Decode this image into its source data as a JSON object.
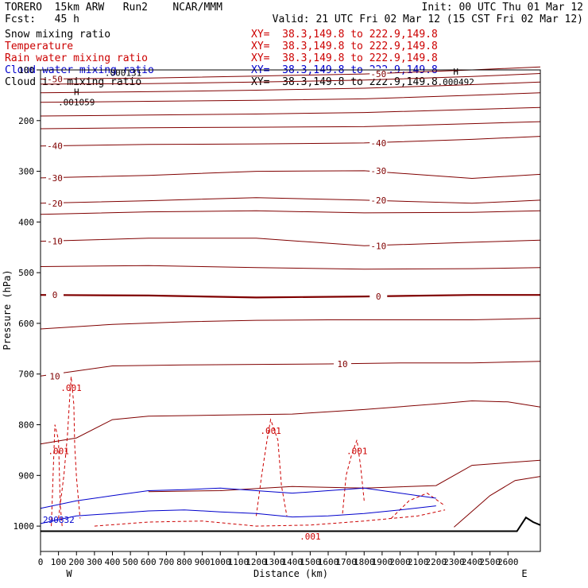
{
  "header": {
    "model": "TORERO  15km ARW   Run2    NCAR/MMM",
    "init": "Init: 00 UTC Thu 01 Mar 12",
    "fcst": "Fcst:   45 h",
    "valid": "Valid: 21 UTC Fri 02 Mar 12 (15 CST Fri 02 Mar 12)"
  },
  "legend": [
    {
      "label": "Snow mixing ratio",
      "xy": "XY=  38.3,149.8 to 222.9,149.8",
      "color": "#000000"
    },
    {
      "label": "Temperature",
      "xy": "XY=  38.3,149.8 to 222.9,149.8",
      "color": "#cc0000"
    },
    {
      "label": "Rain water mixing ratio",
      "xy": "XY=  38.3,149.8 to 222.9,149.8",
      "color": "#cc0000"
    },
    {
      "label": "Cloud water mixing ratio",
      "xy": "XY=  38.3,149.8 to 222.9,149.8",
      "color": "#0000cc"
    },
    {
      "label": "Cloud ice mixing ratio",
      "xy": "XY=  38.3,149.8 to 222.9,149.8",
      "color": "#000000"
    }
  ],
  "chart_data": {
    "type": "line",
    "xlabel": "Distance (km)",
    "ylabel": "Pressure (hPa)",
    "xlim": [
      0,
      2780
    ],
    "ylim": [
      1050,
      100
    ],
    "x_ticks": [
      "0",
      "100",
      "200",
      "300",
      "400",
      "500",
      "600",
      "700",
      "800",
      "900",
      "1000",
      "1100",
      "1200",
      "1300",
      "1400",
      "1500",
      "1600",
      "1700",
      "1800",
      "1900",
      "2000",
      "2100",
      "2200",
      "2300",
      "2400",
      "2500",
      "2600"
    ],
    "y_ticks": [
      "100",
      "200",
      "300",
      "400",
      "500",
      "600",
      "700",
      "800",
      "900",
      "1000"
    ],
    "x_ends": {
      "left": "W",
      "right": "E"
    },
    "colors": {
      "temperature": "#800000",
      "rain": "#cc0000",
      "cloud_water": "#0000cc",
      "ice": "#000000",
      "terrain": "#000000"
    },
    "temperature_isotherms": [
      {
        "label": "-50",
        "pts": [
          [
            0,
            118
          ],
          [
            600,
            116
          ],
          [
            1200,
            112
          ],
          [
            1800,
            108
          ],
          [
            2400,
            100
          ],
          [
            2780,
            94
          ]
        ]
      },
      {
        "label": "",
        "pts": [
          [
            0,
            128
          ],
          [
            600,
            127
          ],
          [
            1200,
            124
          ],
          [
            1800,
            120
          ],
          [
            2400,
            113
          ],
          [
            2780,
            107
          ]
        ]
      },
      {
        "label": "",
        "pts": [
          [
            0,
            145
          ],
          [
            600,
            143
          ],
          [
            1200,
            140
          ],
          [
            1800,
            136
          ],
          [
            2400,
            129
          ],
          [
            2780,
            124
          ]
        ]
      },
      {
        "label": "",
        "pts": [
          [
            0,
            164
          ],
          [
            600,
            162
          ],
          [
            1200,
            160
          ],
          [
            1800,
            157
          ],
          [
            2400,
            150
          ],
          [
            2780,
            145
          ]
        ]
      },
      {
        "label": "",
        "pts": [
          [
            0,
            191
          ],
          [
            600,
            189
          ],
          [
            1200,
            187
          ],
          [
            1800,
            184
          ],
          [
            2400,
            178
          ],
          [
            2780,
            174
          ]
        ]
      },
      {
        "label": "",
        "pts": [
          [
            0,
            216
          ],
          [
            600,
            214
          ],
          [
            1200,
            213
          ],
          [
            1800,
            212
          ],
          [
            2400,
            206
          ],
          [
            2780,
            202
          ]
        ]
      },
      {
        "label": "-40",
        "pts": [
          [
            0,
            250
          ],
          [
            600,
            247
          ],
          [
            1200,
            246
          ],
          [
            1800,
            244
          ],
          [
            2400,
            237
          ],
          [
            2780,
            231
          ]
        ]
      },
      {
        "label": "-30",
        "pts": [
          [
            0,
            313
          ],
          [
            600,
            308
          ],
          [
            1200,
            300
          ],
          [
            1800,
            299
          ],
          [
            2400,
            314
          ],
          [
            2780,
            306
          ]
        ]
      },
      {
        "label": "-20",
        "pts": [
          [
            0,
            363
          ],
          [
            600,
            358
          ],
          [
            1200,
            352
          ],
          [
            1800,
            357
          ],
          [
            2400,
            363
          ],
          [
            2780,
            357
          ]
        ]
      },
      {
        "label": "",
        "pts": [
          [
            0,
            385
          ],
          [
            600,
            380
          ],
          [
            1200,
            378
          ],
          [
            1800,
            382
          ],
          [
            2400,
            381
          ],
          [
            2780,
            378
          ]
        ]
      },
      {
        "label": "-10",
        "pts": [
          [
            0,
            438
          ],
          [
            600,
            432
          ],
          [
            1200,
            432
          ],
          [
            1800,
            447
          ],
          [
            2400,
            440
          ],
          [
            2780,
            436
          ]
        ]
      },
      {
        "label": "",
        "pts": [
          [
            0,
            488
          ],
          [
            600,
            486
          ],
          [
            1200,
            490
          ],
          [
            1800,
            493
          ],
          [
            2400,
            492
          ],
          [
            2780,
            490
          ]
        ]
      },
      {
        "label": "0",
        "pts": [
          [
            0,
            544
          ],
          [
            600,
            545
          ],
          [
            1200,
            549
          ],
          [
            1800,
            547
          ],
          [
            2400,
            544
          ],
          [
            2780,
            544
          ]
        ],
        "bold": true
      },
      {
        "label": "",
        "pts": [
          [
            0,
            611
          ],
          [
            400,
            602
          ],
          [
            800,
            597
          ],
          [
            1200,
            594
          ],
          [
            1600,
            593
          ],
          [
            2000,
            593
          ],
          [
            2400,
            593
          ],
          [
            2780,
            590
          ]
        ]
      },
      {
        "label": "10",
        "pts": [
          [
            0,
            704
          ],
          [
            400,
            684
          ],
          [
            800,
            682
          ],
          [
            1200,
            681
          ],
          [
            1600,
            680
          ],
          [
            2000,
            678
          ],
          [
            2400,
            678
          ],
          [
            2780,
            675
          ]
        ]
      },
      {
        "label": "",
        "pts": [
          [
            0,
            838
          ],
          [
            200,
            826
          ],
          [
            400,
            790
          ],
          [
            600,
            783
          ],
          [
            1000,
            781
          ],
          [
            1400,
            779
          ],
          [
            1800,
            770
          ],
          [
            2200,
            759
          ],
          [
            2400,
            753
          ],
          [
            2600,
            755
          ],
          [
            2780,
            765
          ]
        ]
      },
      {
        "label": "",
        "pts": [
          [
            600,
            932
          ],
          [
            1000,
            930
          ],
          [
            1400,
            922
          ],
          [
            1800,
            925
          ],
          [
            2200,
            920
          ],
          [
            2400,
            880
          ],
          [
            2780,
            870
          ]
        ]
      },
      {
        "label": "",
        "pts": [
          [
            2300,
            1002
          ],
          [
            2500,
            940
          ],
          [
            2640,
            910
          ],
          [
            2780,
            902
          ]
        ]
      }
    ],
    "rain_contours": [
      {
        "label": ".001",
        "pts": [
          [
            100,
            985
          ],
          [
            130,
            900
          ],
          [
            150,
            820
          ],
          [
            160,
            760
          ],
          [
            170,
            705
          ],
          [
            185,
            760
          ],
          [
            190,
            840
          ],
          [
            200,
            905
          ],
          [
            220,
            985
          ]
        ]
      },
      {
        "label": ".001",
        "pts": [
          [
            60,
            1000
          ],
          [
            70,
            900
          ],
          [
            80,
            800
          ],
          [
            100,
            830
          ],
          [
            110,
            960
          ],
          [
            120,
            1000
          ]
        ]
      },
      {
        "label": ".001",
        "pts": [
          [
            1200,
            980
          ],
          [
            1230,
            900
          ],
          [
            1260,
            830
          ],
          [
            1280,
            790
          ],
          [
            1320,
            830
          ],
          [
            1340,
            920
          ],
          [
            1370,
            980
          ]
        ]
      },
      {
        "label": ".001",
        "pts": [
          [
            1680,
            975
          ],
          [
            1700,
            900
          ],
          [
            1730,
            860
          ],
          [
            1760,
            830
          ],
          [
            1780,
            880
          ],
          [
            1800,
            950
          ]
        ]
      },
      {
        "label": "",
        "pts": [
          [
            1950,
            985
          ],
          [
            2050,
            950
          ],
          [
            2150,
            935
          ],
          [
            2250,
            960
          ]
        ]
      },
      {
        "label": ".001",
        "pts": [
          [
            300,
            1000
          ],
          [
            600,
            992
          ],
          [
            900,
            990
          ],
          [
            1200,
            1000
          ],
          [
            1500,
            998
          ],
          [
            1800,
            990
          ],
          [
            2100,
            980
          ],
          [
            2250,
            968
          ]
        ]
      }
    ],
    "cloud_water_contours": [
      {
        "label": "290832",
        "pts": [
          [
            0,
            965
          ],
          [
            200,
            950
          ],
          [
            400,
            940
          ],
          [
            600,
            930
          ],
          [
            800,
            928
          ],
          [
            1000,
            925
          ],
          [
            1200,
            930
          ],
          [
            1400,
            935
          ],
          [
            1600,
            930
          ],
          [
            1800,
            925
          ],
          [
            2000,
            935
          ],
          [
            2200,
            945
          ]
        ]
      },
      {
        "label": "",
        "pts": [
          [
            0,
            995
          ],
          [
            200,
            980
          ],
          [
            400,
            975
          ],
          [
            600,
            970
          ],
          [
            800,
            968
          ],
          [
            1000,
            972
          ],
          [
            1200,
            975
          ],
          [
            1400,
            982
          ],
          [
            1600,
            980
          ],
          [
            1800,
            975
          ],
          [
            2000,
            968
          ],
          [
            2200,
            960
          ]
        ]
      }
    ],
    "ice_maxima": [
      {
        "label": "H",
        "value": ".001059",
        "x": 200,
        "p": 165
      },
      {
        "label": "H",
        "value": ".000492",
        "x": 2310,
        "p": 125
      },
      {
        "label": "",
        "value": ".000131",
        "x": 460,
        "p": 107
      }
    ],
    "terrain": [
      [
        0,
        1010
      ],
      [
        1000,
        1010
      ],
      [
        2000,
        1010
      ],
      [
        2650,
        1010
      ],
      [
        2700,
        983
      ],
      [
        2740,
        992
      ],
      [
        2780,
        998
      ]
    ]
  }
}
